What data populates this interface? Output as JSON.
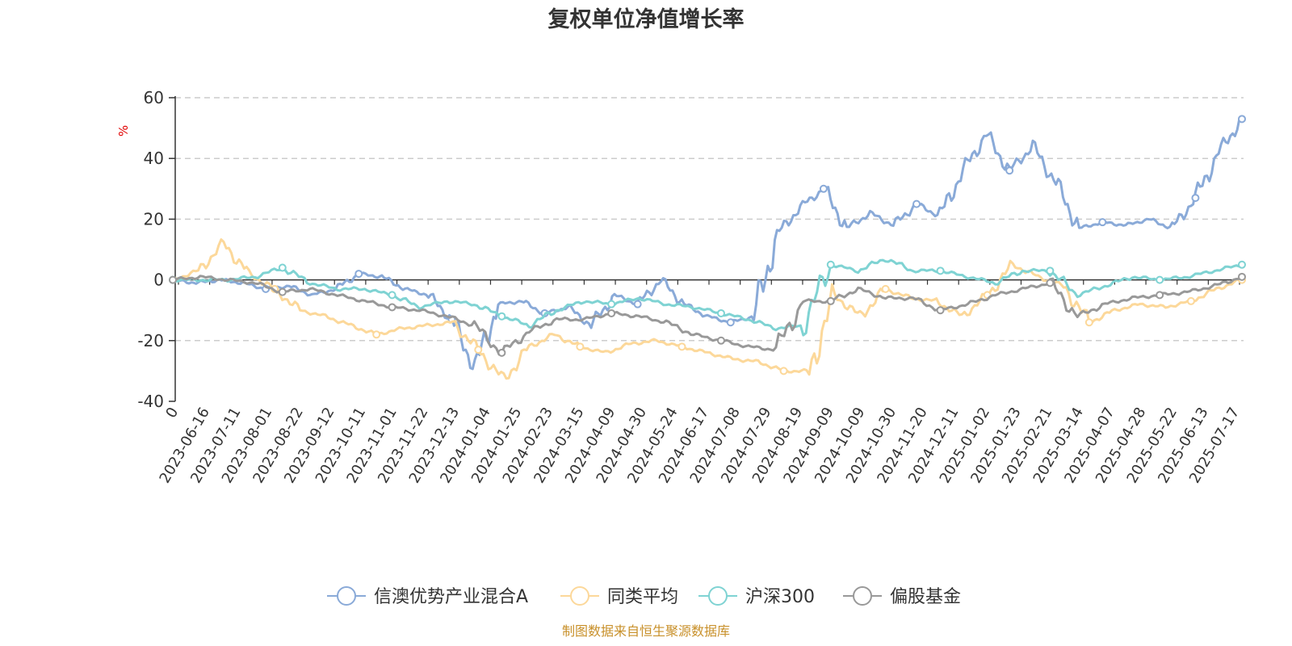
{
  "chart_data": {
    "type": "line",
    "title": "复权单位净值增长率",
    "ylabel": "%",
    "ylim": [
      -40,
      60
    ],
    "yticks": [
      "60",
      "40",
      "20",
      "0",
      "-20",
      "-40"
    ],
    "grid": true,
    "legend_position": "bottom",
    "source": "制图数据来自恒生聚源数据库",
    "x_labels": [
      "0",
      "2023-06-16",
      "2023-07-11",
      "2023-08-01",
      "2023-08-22",
      "2023-09-12",
      "2023-10-11",
      "2023-11-01",
      "2023-11-22",
      "2023-12-13",
      "2024-01-04",
      "2024-01-25",
      "2024-02-23",
      "2024-03-15",
      "2024-04-09",
      "2024-04-30",
      "2024-05-24",
      "2024-06-17",
      "2024-07-08",
      "2024-07-29",
      "2024-08-19",
      "2024-09-09",
      "2024-10-09",
      "2024-10-30",
      "2024-11-20",
      "2024-12-11",
      "2025-01-02",
      "2025-01-23",
      "2025-02-21",
      "2025-03-14",
      "2025-04-07",
      "2025-04-28",
      "2025-05-22",
      "2025-06-13",
      "2025-07-17"
    ],
    "series": [
      {
        "name": "信澳优势产业混合A",
        "color": "#8aaad8",
        "values": [
          0,
          -1,
          0,
          -1,
          -3,
          -2,
          -5,
          -3,
          2,
          1,
          -3,
          -5,
          -13,
          -29,
          -8,
          -7,
          -11,
          -9,
          -15,
          -5,
          -8,
          0,
          -8,
          -12,
          -14,
          -12,
          15,
          24,
          30,
          17,
          22,
          18,
          25,
          21,
          36,
          48,
          36,
          44,
          32,
          17,
          19,
          18,
          20,
          17,
          27,
          42,
          53
        ]
      },
      {
        "name": "同类平均",
        "color": "#fcd89a",
        "values": [
          0,
          3,
          12,
          2,
          -3,
          -10,
          -12,
          -15,
          -18,
          -16,
          -15,
          -14,
          -23,
          -33,
          -22,
          -18,
          -22,
          -24,
          -21,
          -20,
          -22,
          -24,
          -26,
          -27,
          -30,
          -30,
          -5,
          -12,
          -3,
          -6,
          -7,
          -12,
          -5,
          5,
          1,
          -2,
          -14,
          -10,
          -8,
          -9,
          -7,
          -3,
          0
        ]
      },
      {
        "name": "沪深300",
        "color": "#7fd3d3",
        "values": [
          0,
          0,
          0,
          1,
          4,
          -1,
          -3,
          -3,
          -5,
          -9,
          -7,
          -8,
          -12,
          -15,
          -10,
          -7,
          -8,
          -6,
          -8,
          -9,
          -11,
          -13,
          -16,
          -15,
          5,
          3,
          7,
          3,
          3,
          1,
          -1,
          3,
          3,
          -5,
          -2,
          1,
          0,
          1,
          3,
          5
        ]
      },
      {
        "name": "偏股基金",
        "color": "#999999",
        "values": [
          0,
          1,
          0,
          -1,
          -4,
          -3,
          -5,
          -7,
          -9,
          -10,
          -12,
          -15,
          -24,
          -17,
          -13,
          -13,
          -11,
          -12,
          -14,
          -18,
          -20,
          -22,
          -23,
          -7,
          -7,
          -3,
          -6,
          -6,
          -10,
          -8,
          -5,
          -3,
          -1,
          -12,
          -8,
          -6,
          -5,
          -4,
          -2,
          1
        ]
      }
    ]
  }
}
